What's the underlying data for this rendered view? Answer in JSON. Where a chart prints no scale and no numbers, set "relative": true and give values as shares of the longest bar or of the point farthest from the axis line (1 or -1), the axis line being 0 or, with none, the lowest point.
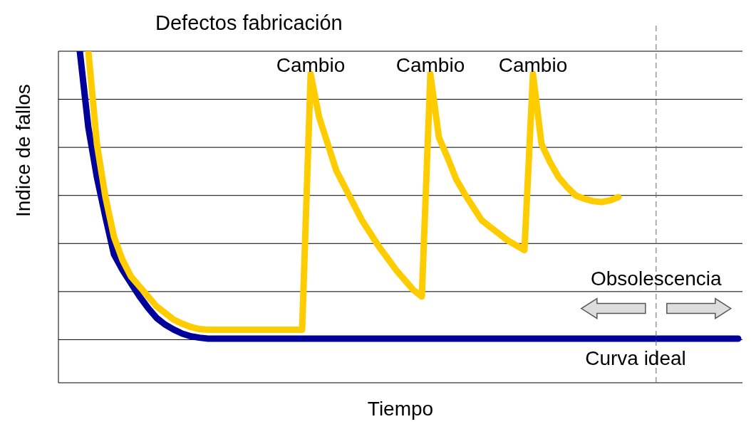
{
  "chart_data": {
    "type": "line",
    "title": "Defectos fabricación",
    "xlabel": "Tiempo",
    "ylabel": "Indice de fallos",
    "relative": true,
    "grid": "y",
    "legend": false,
    "marker": "none",
    "line_style": "solid",
    "categories": [
      null,
      null,
      null,
      null,
      null,
      null,
      null,
      null,
      null,
      null,
      null,
      null,
      null,
      null,
      null,
      null,
      null,
      null,
      null,
      null,
      null,
      null,
      null,
      null,
      null,
      null,
      null,
      null,
      null,
      null,
      null,
      null,
      null,
      null,
      null,
      null,
      null,
      null,
      null,
      null,
      null,
      null,
      null,
      null,
      null,
      null,
      null,
      null,
      null,
      null,
      null,
      null,
      null,
      null,
      null,
      null,
      null,
      null,
      null,
      null,
      null,
      null,
      null,
      null,
      null,
      null,
      null,
      null,
      null,
      null,
      null,
      null,
      null,
      null,
      null,
      null,
      null,
      null,
      null,
      null
    ],
    "series": [
      {
        "name": "Curva ideal",
        "color": "#000099",
        "values": [
          null,
          null,
          1.0,
          0.77,
          0.62,
          0.5,
          0.387,
          0.34,
          0.3,
          0.26,
          0.225,
          0.195,
          0.175,
          0.16,
          0.148,
          0.14,
          0.136,
          0.133,
          0.133,
          0.133,
          0.133,
          0.133,
          0.133,
          0.133,
          0.133,
          0.133,
          0.133,
          0.133,
          0.133,
          0.133,
          0.133,
          0.133,
          0.133,
          0.133,
          0.133,
          0.133,
          0.133,
          0.133,
          0.133,
          0.133,
          0.133,
          0.133,
          0.133,
          0.133,
          0.133,
          0.133,
          0.133,
          0.133,
          0.133,
          0.133,
          0.133,
          0.133,
          0.133,
          0.133,
          0.133,
          0.133,
          0.133,
          0.133,
          0.133,
          0.133,
          0.133,
          0.133,
          0.133,
          0.133,
          0.133,
          0.133,
          0.133,
          0.133,
          0.133,
          0.133,
          0.133,
          0.133,
          0.133,
          0.133,
          0.133,
          0.133,
          0.133,
          0.133,
          0.133,
          0.133
        ]
      },
      {
        "color": "#ffcc00",
        "values": [
          null,
          null,
          null,
          1.0,
          0.72,
          0.56,
          0.44,
          0.37,
          0.32,
          0.29,
          0.26,
          0.23,
          0.21,
          0.19,
          0.178,
          0.168,
          0.162,
          0.16,
          0.16,
          0.16,
          0.16,
          0.16,
          0.16,
          0.16,
          0.16,
          0.16,
          0.16,
          0.16,
          0.16,
          0.931,
          0.8,
          0.72,
          0.64,
          0.59,
          0.54,
          0.49,
          0.45,
          0.41,
          0.375,
          0.34,
          0.31,
          0.28,
          0.26,
          0.931,
          0.74,
          0.68,
          0.615,
          0.57,
          0.53,
          0.49,
          0.47,
          0.45,
          0.43,
          0.415,
          0.4,
          0.931,
          0.72,
          0.665,
          0.62,
          0.59,
          0.565,
          0.555,
          0.548,
          0.545,
          0.55,
          0.56,
          null,
          null,
          null,
          null,
          null,
          null,
          null,
          null,
          null,
          null,
          null,
          null,
          null,
          null
        ]
      }
    ],
    "annotations": [
      "Cambio",
      "Cambio",
      "Cambio",
      "Obsolescencia"
    ]
  }
}
